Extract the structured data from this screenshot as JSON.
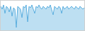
{
  "chart_data": {
    "type": "area",
    "values": [
      3,
      1,
      4,
      -2,
      3,
      2,
      -1,
      3,
      -4,
      2,
      1,
      -12,
      3,
      2,
      1,
      -5,
      3,
      2,
      4,
      -8,
      3,
      2,
      4,
      1,
      -2,
      3,
      2,
      4,
      2,
      1,
      3,
      2,
      1,
      3,
      2,
      4,
      1,
      -3,
      3,
      2,
      1,
      3,
      2,
      -2,
      3,
      1,
      2,
      3,
      1,
      2,
      3,
      2,
      1,
      3,
      2,
      1,
      3,
      2,
      1,
      2
    ],
    "color": "#5aaedf",
    "xlim": [
      0,
      59
    ],
    "ylim": [
      -14,
      7
    ],
    "tick_labels": false,
    "grid": false
  }
}
